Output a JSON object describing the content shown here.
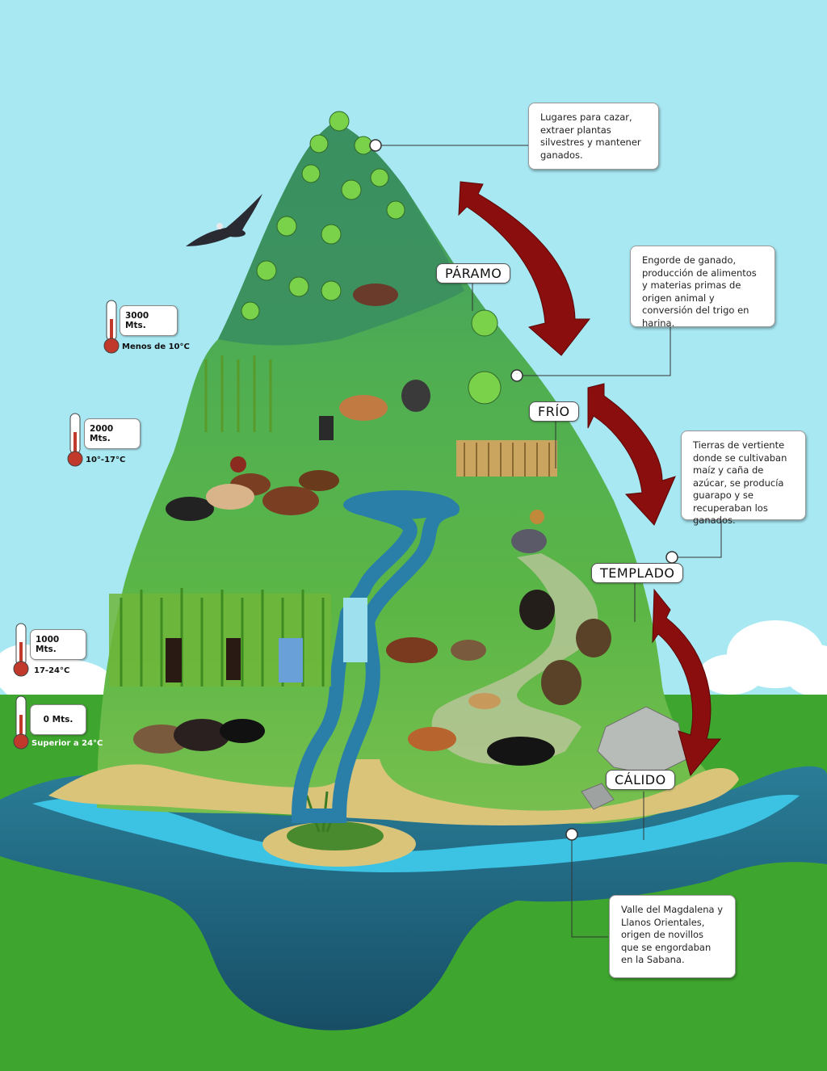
{
  "zones": [
    {
      "label": "PÁRAMO"
    },
    {
      "label": "FRÍO"
    },
    {
      "label": "TEMPLADO"
    },
    {
      "label": "CÁLIDO"
    }
  ],
  "notes": {
    "paramo": "Lugares para cazar, extraer plantas silvestres y mantener ganados.",
    "frio": "Engorde de ganado, producción de alimentos y materias primas de origen animal y conversión del trigo en harina.",
    "templado": "Tierras de vertiente donde se cultivaban maíz y caña de azúcar, se producía guarapo y se recuperaban los ganados.",
    "calido": "Valle del Magdalena y Llanos Orientales, origen de novillos que se engordaban en la Sabana."
  },
  "altitudes": [
    {
      "alt": "3000 Mts.",
      "temp": "Menos de 10°C"
    },
    {
      "alt": "2000 Mts.",
      "temp": "10°-17°C"
    },
    {
      "alt": "1000 Mts.",
      "temp": "17-24°C"
    },
    {
      "alt": "0 Mts.",
      "temp": "Superior a 24°C"
    }
  ],
  "colors": {
    "sky": "#a8e8f3",
    "grass": "#3ea52e",
    "water_dark": "#1d5c74",
    "water_light": "#3cc3e3",
    "mountain_top": "#3e9a66",
    "mountain_mid": "#5cb646",
    "arrow": "#8b0e0e",
    "sand": "#d9c47a"
  }
}
